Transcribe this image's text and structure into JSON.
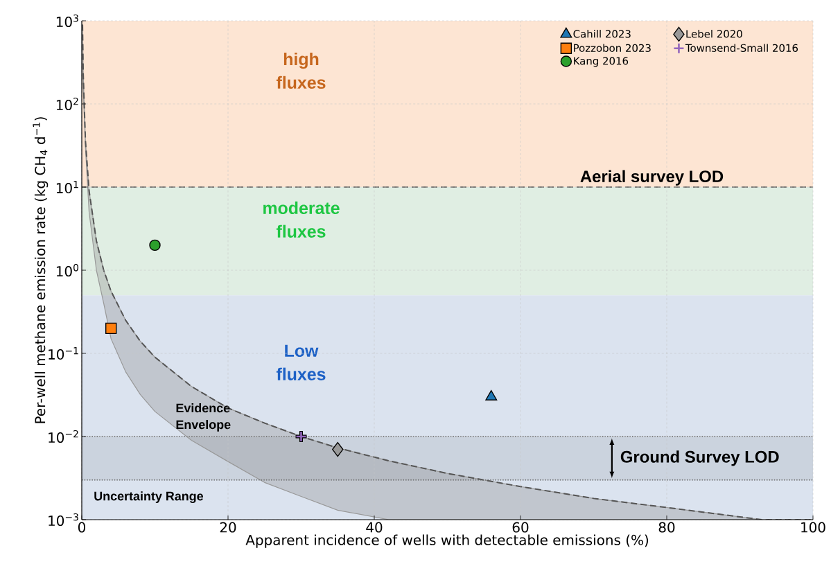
{
  "chart_data": {
    "type": "scatter",
    "xlabel": "Apparent incidence of wells with detectable emissions (%)",
    "ylabel": "Per-well methane emission rate (kg CH$_{4}$ d$^{−1}$)",
    "xlim": [
      0,
      100
    ],
    "xticks": [
      0,
      20,
      40,
      60,
      80,
      100
    ],
    "ylim": [
      0.001,
      1000
    ],
    "log": "y",
    "yticks": [
      {
        "value": 0.001,
        "label": "10$^{−3}$"
      },
      {
        "value": 0.01,
        "label": "10$^{−2}$"
      },
      {
        "value": 0.1,
        "label": "10$^{−1}$"
      },
      {
        "value": 1,
        "label": "10$^{0}$"
      },
      {
        "value": 10,
        "label": "10$^{1}$"
      },
      {
        "value": 100,
        "label": "10$^{2}$"
      },
      {
        "value": 1000,
        "label": "10$^{3}$"
      }
    ],
    "grid": true,
    "legend": "top right",
    "bands": [
      {
        "axis": "y",
        "from": 10,
        "to": 1000,
        "label": "high fluxes",
        "color": "#fde5d3"
      },
      {
        "axis": "y",
        "from": 0.5,
        "to": 10,
        "label": "moderate fluxes",
        "color": "#e0eee3"
      },
      {
        "axis": "y",
        "from": 0.001,
        "to": 0.5,
        "label": "Low fluxes",
        "color": "#dbe3ef"
      },
      {
        "axis": "y",
        "from": 0.003,
        "to": 0.01,
        "label": "Ground Survey LOD"
      }
    ],
    "ref_lines": [
      {
        "axis": "y",
        "value": 10,
        "label": "Aerial survey LOD",
        "line_style": "dashed",
        "color": "#555555"
      },
      {
        "axis": "y",
        "value": 0.01,
        "line_style": "dotted",
        "color": "#666666"
      },
      {
        "axis": "y",
        "value": 0.003,
        "line_style": "dotted",
        "color": "#666666"
      }
    ],
    "annotations": [
      "Evidence Envelope",
      "Uncertainty Range"
    ],
    "series": [
      {
        "type": "line",
        "color": "#555555",
        "line_style": "dashed",
        "marker": "none",
        "x": [
          0.1,
          0.2,
          0.5,
          1,
          2,
          3,
          4,
          6,
          8,
          10,
          15,
          20,
          25,
          30,
          35,
          42,
          50,
          60,
          70,
          80,
          93,
          100
        ],
        "values": [
          900,
          225,
          36,
          9,
          2.25,
          1,
          0.56,
          0.25,
          0.14,
          0.09,
          0.04,
          0.022,
          0.0145,
          0.01,
          0.0073,
          0.0051,
          0.0036,
          0.0025,
          0.0018,
          0.0014,
          0.001,
          0.001
        ],
        "lower": [
          400,
          150,
          30,
          5,
          1,
          0.4,
          0.15,
          0.06,
          0.032,
          0.02,
          0.009,
          0.005,
          0.0028,
          0.0019,
          0.0013,
          0.001,
          0.001,
          0.001,
          0.001,
          0.001,
          0.001,
          0.001
        ],
        "upper": [
          900,
          225,
          36,
          9,
          2.25,
          1,
          0.56,
          0.25,
          0.14,
          0.09,
          0.04,
          0.022,
          0.0145,
          0.01,
          0.0073,
          0.0051,
          0.0036,
          0.0025,
          0.0018,
          0.0014,
          0.001,
          0.001
        ]
      },
      {
        "name": "Cahill 2023",
        "color": "#1f77b4",
        "marker": "triangle",
        "x": [
          56
        ],
        "values": [
          0.03
        ]
      },
      {
        "name": "Pozzobon 2023",
        "color": "#ff7f0e",
        "marker": "square",
        "x": [
          4
        ],
        "values": [
          0.2
        ]
      },
      {
        "name": "Kang 2016",
        "color": "#2ca02c",
        "marker": "circle",
        "x": [
          10
        ],
        "values": [
          2
        ]
      },
      {
        "name": "Lebel 2020",
        "color": "#999999",
        "marker": "diamond",
        "x": [
          35
        ],
        "values": [
          0.007
        ]
      },
      {
        "name": "Townsend-Small 2016",
        "color": "#9467bd",
        "marker": "cross",
        "x": [
          30
        ],
        "values": [
          0.01
        ]
      }
    ]
  }
}
